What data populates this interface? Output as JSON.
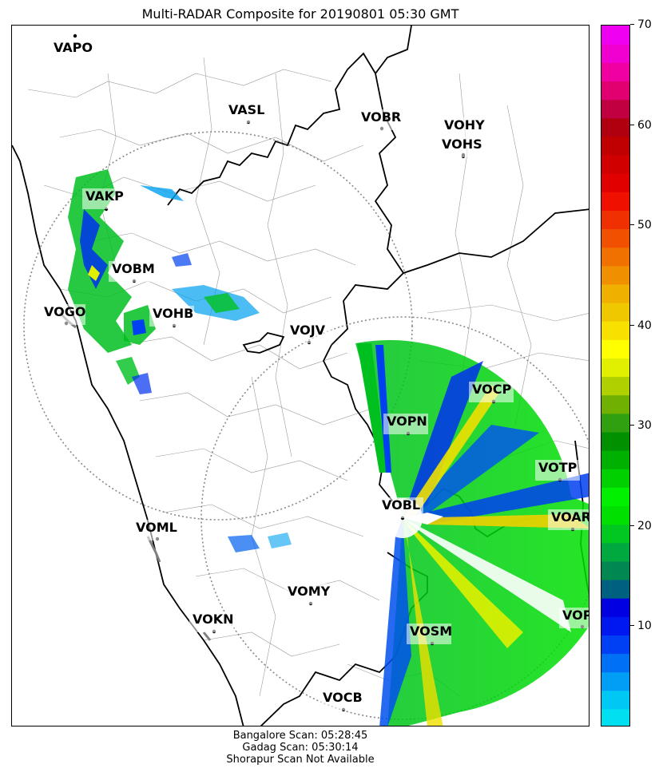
{
  "title": "Multi-RADAR Composite for 20190801 05:30 GMT",
  "colorbar": {
    "min": 0,
    "max": 70,
    "ticks": [
      "10",
      "20",
      "30",
      "40",
      "50",
      "60",
      "70"
    ],
    "colors": [
      "#00e0f0",
      "#00c8f5",
      "#009ef5",
      "#0070f5",
      "#0040f5",
      "#0018f0",
      "#0000e0",
      "#006080",
      "#008850",
      "#00a840",
      "#00c820",
      "#00e000",
      "#00f000",
      "#00d000",
      "#00b000",
      "#009000",
      "#30a010",
      "#70b000",
      "#b0d000",
      "#e0f000",
      "#ffff00",
      "#f8e000",
      "#f0c800",
      "#f0b000",
      "#f09000",
      "#f07000",
      "#f05000",
      "#f03000",
      "#f01000",
      "#e00000",
      "#d00000",
      "#c00000",
      "#b00010",
      "#c00040",
      "#e00070",
      "#f000a0",
      "#f000d0",
      "#f000f0"
    ]
  },
  "stations": [
    {
      "code": "VAPO"
    },
    {
      "code": "VASL"
    },
    {
      "code": "VOBR"
    },
    {
      "code": "VOHY"
    },
    {
      "code": "VOHS"
    },
    {
      "code": "VAKP"
    },
    {
      "code": "VOBM"
    },
    {
      "code": "VOGO"
    },
    {
      "code": "VOHB"
    },
    {
      "code": "VOJV"
    },
    {
      "code": "VOCP"
    },
    {
      "code": "VOPN"
    },
    {
      "code": "VOTP"
    },
    {
      "code": "VOBL"
    },
    {
      "code": "VOAR"
    },
    {
      "code": "VOML"
    },
    {
      "code": "VOMY"
    },
    {
      "code": "VOKN"
    },
    {
      "code": "VOSM"
    },
    {
      "code": "VOPC"
    },
    {
      "code": "VOCB"
    }
  ],
  "footer": {
    "line1": "Bangalore Scan: 05:28:45",
    "line2": "Gadag Scan: 05:30:14",
    "line3": "Shorapur Scan Not Available"
  }
}
